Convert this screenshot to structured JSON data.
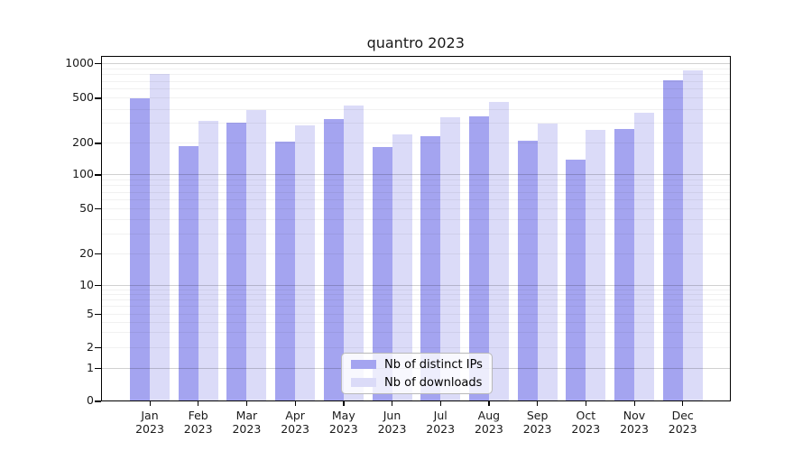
{
  "chart_data": {
    "type": "bar",
    "title": "quantro 2023",
    "categories": [
      "Jan 2023",
      "Feb 2023",
      "Mar 2023",
      "Apr 2023",
      "May 2023",
      "Jun 2023",
      "Jul 2023",
      "Aug 2023",
      "Sep 2023",
      "Oct 2023",
      "Nov 2023",
      "Dec 2023"
    ],
    "series": [
      {
        "name": "Nb of distinct IPs",
        "color": "#a4a4f0",
        "values": [
          490,
          185,
          300,
          204,
          322,
          183,
          230,
          344,
          208,
          137,
          266,
          705
        ]
      },
      {
        "name": "Nb of downloads",
        "color": "#dbdbf8",
        "values": [
          810,
          310,
          390,
          287,
          424,
          236,
          335,
          455,
          296,
          262,
          368,
          865
        ]
      }
    ],
    "xlabel": "",
    "ylabel": "",
    "yscale": "symlog",
    "ylim": [
      0,
      1200
    ],
    "yticks": [
      0,
      1,
      2,
      5,
      10,
      20,
      50,
      100,
      200,
      500,
      1000
    ],
    "ytick_labels": [
      "0",
      "1",
      "2",
      "5",
      "10",
      "20",
      "50",
      "100",
      "200",
      "500",
      "1000"
    ],
    "minor_gridline_values": [
      2,
      3,
      4,
      5,
      6,
      7,
      8,
      9,
      20,
      30,
      40,
      50,
      60,
      70,
      80,
      90,
      200,
      300,
      400,
      500,
      600,
      700,
      800,
      900
    ],
    "major_gridline_values": [
      1,
      10,
      100,
      1000
    ],
    "grid": true,
    "legend_position": "lower center"
  },
  "colors": {
    "background": "#ffffff",
    "axis_spine": "#000000",
    "text": "#1a1a1a",
    "grid_minor": "#f1f1f1",
    "grid_major": "#cfcfcf",
    "series_ips": "#a4a4f0",
    "series_downloads": "#dbdbf8"
  }
}
